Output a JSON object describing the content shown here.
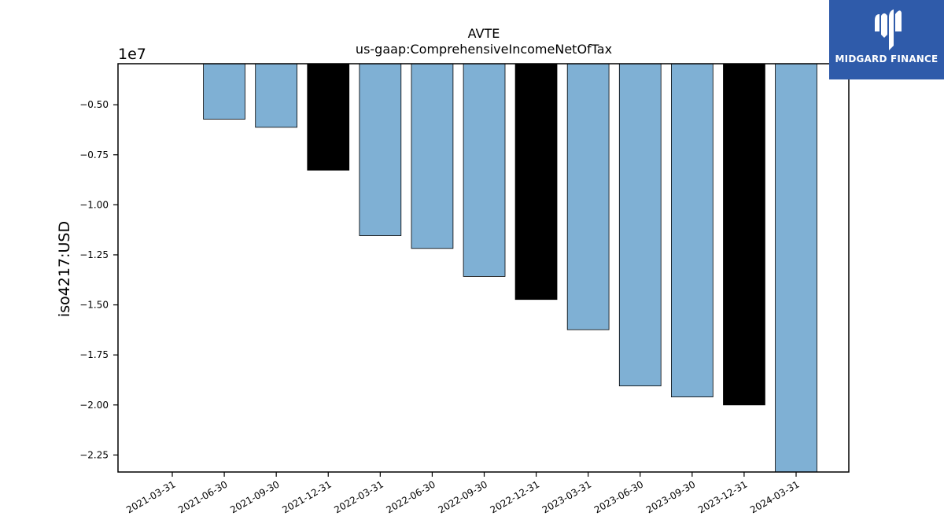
{
  "chart_data": {
    "type": "bar",
    "title": "AVTE",
    "subtitle": "us-gaap:ComprehensiveIncomeNetOfTax",
    "ylabel": "iso4217:USD",
    "xlabel": "",
    "scale_label": "1e7",
    "categories": [
      "2021-03-31",
      "2021-06-30",
      "2021-09-30",
      "2021-12-31",
      "2022-03-31",
      "2022-06-30",
      "2022-09-30",
      "2022-12-31",
      "2023-03-31",
      "2023-06-30",
      "2023-09-30",
      "2023-12-31",
      "2024-03-31"
    ],
    "values": [
      null,
      -5723000,
      -6127000,
      -8270000,
      -11540000,
      -12180000,
      -13580000,
      -14730000,
      -16240000,
      -19050000,
      -19600000,
      -20000000,
      -23350000
    ],
    "fiscal_year_end": [
      false,
      false,
      false,
      true,
      false,
      false,
      false,
      true,
      false,
      false,
      false,
      true,
      false
    ],
    "yticks": [
      -0.5,
      -0.75,
      -1.0,
      -1.25,
      -1.5,
      -1.75,
      -2.0,
      -2.25
    ],
    "ytick_labels": [
      "−0.50",
      "−0.75",
      "−1.00",
      "−1.25",
      "−1.50",
      "−1.75",
      "−2.00",
      "−2.25"
    ],
    "ylim": [
      -23350000,
      -2950000
    ],
    "grid": false,
    "colors": {
      "bar": "#7fb0d4",
      "fiscal_year_bar": "#000000",
      "edge": "#000000"
    }
  },
  "logo": {
    "text": "MIDGARD FINANCE",
    "icon": "midgard-logo-icon",
    "background": "#2f5baa"
  }
}
